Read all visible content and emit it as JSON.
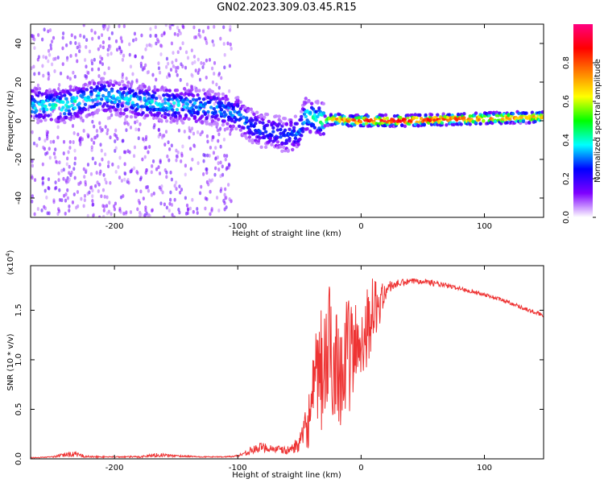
{
  "figure_title": "GN02.2023.309.03.45.R15",
  "chart_data": [
    {
      "type": "heatmap",
      "xlabel": "Height of straight line (km)",
      "ylabel": "Frequency (Hz)",
      "xlim": [
        -268,
        148
      ],
      "ylim": [
        -50,
        50
      ],
      "xticks": [
        -200,
        -100,
        0,
        100
      ],
      "xtick_labels": [
        "-200",
        "-100",
        "0",
        "100"
      ],
      "yticks": [
        -40,
        -20,
        0,
        20,
        40
      ],
      "ytick_labels": [
        "-40",
        "-20",
        "0",
        "20",
        "40"
      ],
      "colorbar": {
        "label": "Normalized spectral amplitude",
        "range": [
          0.0,
          1.0
        ],
        "ticks": [
          0.0,
          0.2,
          0.4,
          0.6,
          0.8
        ],
        "tick_labels": [
          "0.0",
          "0.2",
          "0.4",
          "0.6",
          "0.8"
        ],
        "colors": [
          "#ffffff",
          "#7f00ff",
          "#0000ff",
          "#00ffff",
          "#00ff00",
          "#ffff00",
          "#ff7f00",
          "#ff0000",
          "#ff0080"
        ]
      },
      "ridge": {
        "x": [
          -268,
          -240,
          -210,
          -180,
          -150,
          -120,
          -100,
          -90,
          -80,
          -70,
          -60,
          -50,
          -45,
          -40,
          -35,
          -30,
          -20,
          -10,
          0,
          30,
          60,
          90,
          120,
          148
        ],
        "y": [
          8,
          8,
          13,
          10,
          8,
          7,
          3,
          -2,
          -5,
          -6,
          -8,
          -6,
          3,
          2,
          1,
          0,
          1,
          0,
          0,
          0,
          0.5,
          1,
          1.5,
          2
        ],
        "amplitude": [
          0.35,
          0.4,
          0.35,
          0.35,
          0.35,
          0.3,
          0.3,
          0.28,
          0.25,
          0.25,
          0.25,
          0.3,
          0.35,
          0.4,
          0.4,
          0.5,
          0.75,
          0.8,
          0.85,
          0.9,
          0.85,
          0.8,
          0.75,
          0.7
        ]
      },
      "notes": ""
    },
    {
      "type": "line",
      "xlabel": "Height of straight line (km)",
      "ylabel": "SNR (10 * v/v)",
      "y_multiplier": "(x10^4)",
      "y_multiplier_base": "(x10",
      "y_multiplier_exp": "4",
      "y_multiplier_close": ")",
      "xlim": [
        -268,
        148
      ],
      "ylim": [
        0,
        1.95
      ],
      "xticks": [
        -200,
        -100,
        0,
        100
      ],
      "xtick_labels": [
        "-200",
        "-100",
        "0",
        "100"
      ],
      "yticks": [
        0.0,
        0.5,
        1.0,
        1.5
      ],
      "ytick_labels": [
        "0.0",
        "0.5",
        "1.0",
        "1.5"
      ],
      "color": "#ee3333",
      "series": [
        {
          "x": [
            -268,
            -250,
            -235,
            -220,
            -200,
            -180,
            -165,
            -150,
            -130,
            -110,
            -100,
            -90,
            -80,
            -70,
            -60,
            -50,
            -45,
            -40,
            -35,
            -30,
            -25,
            -20,
            -15,
            -10,
            -5,
            0,
            5,
            10,
            15,
            20,
            25,
            30,
            40,
            50,
            60,
            80,
            100,
            120,
            140,
            148
          ],
          "y": [
            0.01,
            0.02,
            0.05,
            0.02,
            0.02,
            0.02,
            0.04,
            0.03,
            0.02,
            0.02,
            0.03,
            0.08,
            0.12,
            0.1,
            0.08,
            0.15,
            0.3,
            0.5,
            0.85,
            0.9,
            1.1,
            1.0,
            0.9,
            1.05,
            1.1,
            1.2,
            1.35,
            1.5,
            1.55,
            1.7,
            1.75,
            1.77,
            1.79,
            1.8,
            1.77,
            1.72,
            1.66,
            1.58,
            1.48,
            1.45
          ],
          "noise_amplitude": [
            0.005,
            0.005,
            0.03,
            0.01,
            0.005,
            0.01,
            0.02,
            0.01,
            0.005,
            0.005,
            0.01,
            0.04,
            0.05,
            0.04,
            0.04,
            0.08,
            0.2,
            0.4,
            0.6,
            0.7,
            0.7,
            0.6,
            0.6,
            0.6,
            0.5,
            0.45,
            0.4,
            0.35,
            0.2,
            0.1,
            0.05,
            0.04,
            0.03,
            0.03,
            0.03,
            0.02,
            0.02,
            0.02,
            0.02,
            0.02
          ]
        }
      ]
    }
  ]
}
